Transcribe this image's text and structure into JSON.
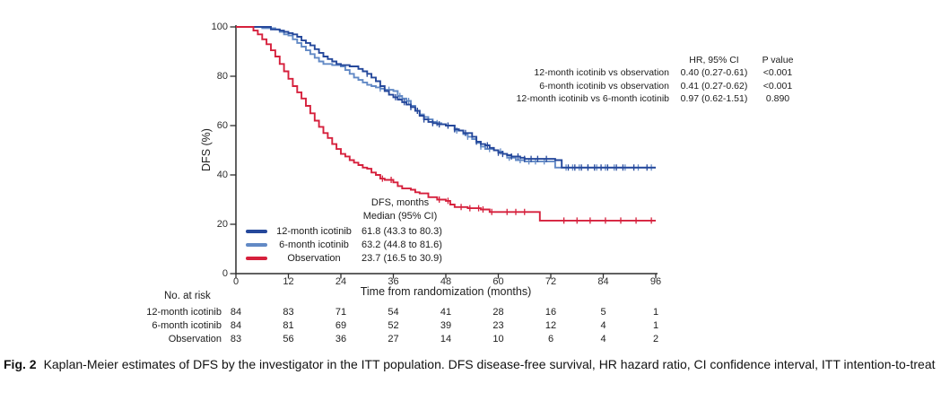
{
  "chart_data": {
    "type": "line",
    "subtype": "kaplan_meier_step",
    "title": "",
    "xlabel": "Time from randomization (months)",
    "ylabel": "DFS (%)",
    "xlim": [
      0,
      96
    ],
    "ylim": [
      0,
      100
    ],
    "x_ticks": [
      0,
      12,
      24,
      36,
      48,
      60,
      72,
      84,
      96
    ],
    "y_ticks": [
      100,
      80,
      60,
      40,
      20,
      0
    ],
    "grid": false,
    "axis_color": "#2d2d2d",
    "series": [
      {
        "name": "12-month icotinib",
        "color": "#25489B",
        "steps": [
          [
            0,
            100
          ],
          [
            8,
            100
          ],
          [
            8,
            99
          ],
          [
            10,
            98.5
          ],
          [
            11,
            98
          ],
          [
            12,
            97.5
          ],
          [
            13,
            97
          ],
          [
            14,
            96
          ],
          [
            15,
            94.5
          ],
          [
            16,
            93.5
          ],
          [
            17,
            92.5
          ],
          [
            18,
            91
          ],
          [
            19,
            89.5
          ],
          [
            20,
            88
          ],
          [
            21,
            87
          ],
          [
            22,
            86
          ],
          [
            23,
            85
          ],
          [
            24,
            84.5
          ],
          [
            26,
            84
          ],
          [
            28,
            83
          ],
          [
            29,
            82
          ],
          [
            30,
            81
          ],
          [
            31,
            79.5
          ],
          [
            32,
            78
          ],
          [
            33,
            76
          ],
          [
            34,
            74
          ],
          [
            35,
            72.5
          ],
          [
            36,
            71.5
          ],
          [
            37,
            70.5
          ],
          [
            38,
            69.5
          ],
          [
            39,
            68.5
          ],
          [
            40,
            67.5
          ],
          [
            41,
            66
          ],
          [
            42,
            64
          ],
          [
            43,
            62.5
          ],
          [
            44,
            61.5
          ],
          [
            45,
            61
          ],
          [
            46,
            60.5
          ],
          [
            48,
            60
          ],
          [
            50,
            58.5
          ],
          [
            51,
            58
          ],
          [
            52,
            57
          ],
          [
            54,
            55.5
          ],
          [
            55,
            53.5
          ],
          [
            56,
            52.5
          ],
          [
            57,
            52
          ],
          [
            58,
            51
          ],
          [
            59,
            50
          ],
          [
            60,
            49
          ],
          [
            61,
            48.5
          ],
          [
            62,
            48
          ],
          [
            63,
            47.5
          ],
          [
            65,
            47
          ],
          [
            66,
            46.5
          ],
          [
            72,
            46.5
          ],
          [
            73,
            46
          ],
          [
            74.5,
            43
          ],
          [
            96,
            43
          ]
        ],
        "censor_months": [
          30,
          36.5,
          38.5,
          40,
          41.5,
          43,
          45,
          46.5,
          48.5,
          50,
          52.5,
          55,
          57.5,
          60,
          61,
          63,
          64.5,
          66,
          67.5,
          69,
          71,
          76,
          77.5,
          79,
          80.5,
          82,
          83.5,
          85,
          87,
          88.5,
          91,
          94
        ]
      },
      {
        "name": "6-month icotinib",
        "color": "#6289C5",
        "steps": [
          [
            0,
            100
          ],
          [
            6,
            100
          ],
          [
            6,
            99.5
          ],
          [
            9,
            99
          ],
          [
            10,
            98
          ],
          [
            11,
            97
          ],
          [
            12,
            96.5
          ],
          [
            13,
            95
          ],
          [
            14,
            93.5
          ],
          [
            15,
            92
          ],
          [
            16,
            90.5
          ],
          [
            17,
            89
          ],
          [
            18,
            87.5
          ],
          [
            19,
            86
          ],
          [
            20,
            85
          ],
          [
            22,
            84.5
          ],
          [
            24,
            84
          ],
          [
            25,
            82.5
          ],
          [
            26,
            81
          ],
          [
            27,
            79.5
          ],
          [
            28,
            78.5
          ],
          [
            29,
            77.5
          ],
          [
            30,
            76.5
          ],
          [
            31,
            76
          ],
          [
            32,
            75.5
          ],
          [
            33,
            75
          ],
          [
            34,
            74.5
          ],
          [
            36,
            74
          ],
          [
            37,
            72
          ],
          [
            38,
            71
          ],
          [
            39,
            70
          ],
          [
            40,
            68
          ],
          [
            41,
            66
          ],
          [
            42,
            64.5
          ],
          [
            43,
            63.5
          ],
          [
            44,
            62.5
          ],
          [
            45,
            61.5
          ],
          [
            46,
            61
          ],
          [
            47,
            60.5
          ],
          [
            48,
            60
          ],
          [
            50,
            58
          ],
          [
            52,
            56.5
          ],
          [
            53,
            55.5
          ],
          [
            54,
            54.5
          ],
          [
            55,
            53
          ],
          [
            56,
            51.5
          ],
          [
            57,
            50.5
          ],
          [
            59,
            50
          ],
          [
            60,
            49.5
          ],
          [
            61,
            48.5
          ],
          [
            62,
            47
          ],
          [
            64,
            46
          ],
          [
            66,
            45.5
          ],
          [
            72,
            45.5
          ],
          [
            73,
            43
          ],
          [
            96,
            43
          ]
        ],
        "censor_months": [
          33,
          35,
          37.5,
          39.5,
          41.5,
          44,
          46,
          48.5,
          50.5,
          53,
          56,
          58,
          60.5,
          62.5,
          65,
          67,
          68.5,
          70.5,
          75.5,
          77,
          78.5,
          80.5,
          82.5,
          84.5,
          86.5,
          89,
          92,
          95
        ]
      },
      {
        "name": "Observation",
        "color": "#D6203C",
        "steps": [
          [
            0,
            100
          ],
          [
            3,
            100
          ],
          [
            4,
            98.5
          ],
          [
            5,
            97
          ],
          [
            6,
            95
          ],
          [
            7,
            93
          ],
          [
            8,
            90.5
          ],
          [
            9,
            88
          ],
          [
            10,
            85
          ],
          [
            11,
            82
          ],
          [
            12,
            79
          ],
          [
            13,
            76
          ],
          [
            14,
            73.5
          ],
          [
            15,
            71
          ],
          [
            16,
            68
          ],
          [
            17,
            65
          ],
          [
            18,
            62
          ],
          [
            19,
            59.5
          ],
          [
            20,
            57
          ],
          [
            21,
            55
          ],
          [
            22,
            52.5
          ],
          [
            23,
            50.5
          ],
          [
            24,
            48.5
          ],
          [
            25,
            47.5
          ],
          [
            26,
            46
          ],
          [
            27,
            45
          ],
          [
            28,
            44
          ],
          [
            29,
            43
          ],
          [
            30,
            42.5
          ],
          [
            31,
            41
          ],
          [
            32,
            40
          ],
          [
            33,
            38.5
          ],
          [
            34,
            38
          ],
          [
            36,
            37
          ],
          [
            37,
            35.5
          ],
          [
            38,
            34.5
          ],
          [
            40,
            34
          ],
          [
            41,
            33
          ],
          [
            42,
            32.5
          ],
          [
            44,
            31
          ],
          [
            46,
            30
          ],
          [
            48,
            29.5
          ],
          [
            49,
            28
          ],
          [
            50,
            27
          ],
          [
            53,
            26.5
          ],
          [
            56,
            26
          ],
          [
            58,
            25
          ],
          [
            68.5,
            25
          ],
          [
            69.5,
            21.5
          ],
          [
            96,
            21.5
          ]
        ],
        "censor_months": [
          33.5,
          35.5,
          46.5,
          48.5,
          51.5,
          53.5,
          55.5,
          56.5,
          58.5,
          62,
          64,
          66,
          75,
          78,
          81,
          84.5,
          88,
          91.5,
          95
        ]
      }
    ],
    "hr_table": {
      "col_headers": [
        "HR, 95% CI",
        "P value"
      ],
      "rows": [
        {
          "label": "12-month icotinib vs observation",
          "hr": "0.40 (0.27-0.61)",
          "p": "<0.001"
        },
        {
          "label": "6-month icotinib vs observation",
          "hr": "0.41 (0.27-0.62)",
          "p": "<0.001"
        },
        {
          "label": "12-month icotinib vs 6-month icotinib",
          "hr": "0.97 (0.62-1.51)",
          "p": "0.890"
        }
      ]
    },
    "median_table": {
      "header_line1": "DFS, months",
      "header_line2": "Median (95% CI)",
      "rows": [
        {
          "name": "12-month icotinib",
          "median": "61.8 (43.3 to 80.3)",
          "color": "#25489B"
        },
        {
          "name": "6-month icotinib",
          "median": "63.2 (44.8 to 81.6)",
          "color": "#6289C5"
        },
        {
          "name": "Observation",
          "median": "23.7 (16.5 to 30.9)",
          "color": "#D6203C"
        }
      ]
    },
    "risk_table": {
      "title": "No. at risk",
      "rows": [
        {
          "label": "12-month icotinib",
          "counts": [
            84,
            83,
            71,
            54,
            41,
            28,
            16,
            5,
            1
          ]
        },
        {
          "label": "6-month icotinib",
          "counts": [
            84,
            81,
            69,
            52,
            39,
            23,
            12,
            4,
            1
          ]
        },
        {
          "label": "Observation",
          "counts": [
            83,
            56,
            36,
            27,
            14,
            10,
            6,
            4,
            2
          ]
        }
      ]
    }
  },
  "caption": {
    "fig_label": "Fig. 2",
    "text": "Kaplan-Meier estimates of DFS by the investigator in the ITT population. DFS disease-free survival, HR hazard ratio, CI confidence interval, ITT intention-to-treat"
  }
}
